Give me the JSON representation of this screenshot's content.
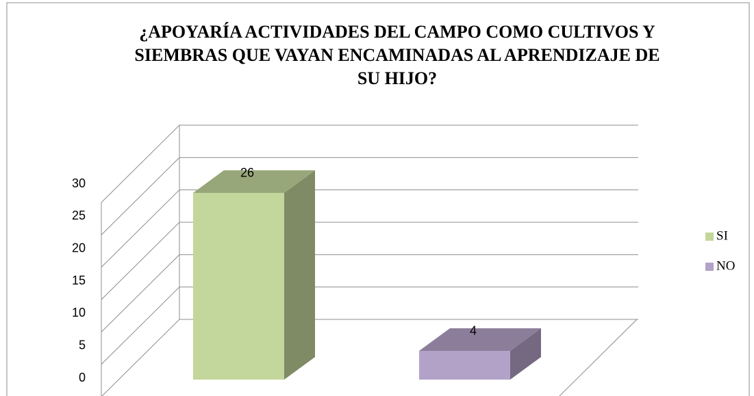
{
  "chart_data": {
    "type": "bar3d",
    "title": "¿APOYARÍA ACTIVIDADES DEL CAMPO COMO CULTIVOS Y SIEMBRAS QUE VAYAN ENCAMINADAS AL APRENDIZAJE DE SU HIJO?",
    "categories": [
      "SI",
      "NO"
    ],
    "series": [
      {
        "name": "SI",
        "color": "#c3d69b",
        "values": [
          26,
          null
        ]
      },
      {
        "name": "NO",
        "color": "#b3a2c7",
        "values": [
          null,
          4
        ]
      }
    ],
    "ylim": [
      0,
      30
    ],
    "yticks": [
      0,
      5,
      10,
      15,
      20,
      25,
      30
    ],
    "grid": true,
    "legend": "right"
  }
}
